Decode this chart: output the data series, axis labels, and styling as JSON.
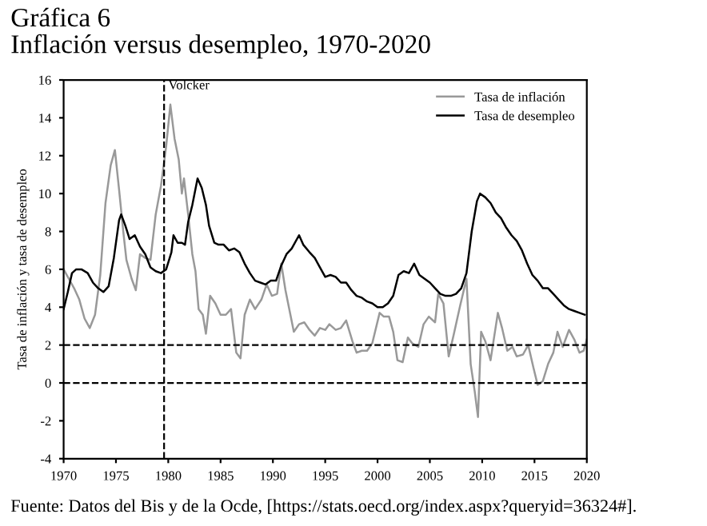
{
  "chart_data": {
    "type": "line",
    "title": "Gráfica 6",
    "subtitle": "Inflación versus desempleo, 1970-2020",
    "ylabel": "Tasa de inflación y tasa de desempleo",
    "xlim": [
      1970,
      2020
    ],
    "xticks": [
      1970,
      1975,
      1980,
      1985,
      1990,
      1995,
      2000,
      2005,
      2010,
      2015,
      2020
    ],
    "ylim": [
      -4,
      16
    ],
    "yticks": [
      -4,
      -2,
      0,
      2,
      4,
      6,
      8,
      10,
      12,
      14,
      16
    ],
    "grid": false,
    "legend": "top right",
    "line_style": "solid",
    "marker": "none",
    "series": [
      {
        "name": "Tasa de inflación",
        "color": "#999999",
        "x": [
          1970,
          1970.5,
          1971,
          1971.5,
          1972,
          1972.5,
          1973,
          1973.5,
          1974,
          1974.5,
          1974.9,
          1975.3,
          1975.7,
          1976,
          1976.5,
          1976.9,
          1977.3,
          1977.8,
          1978.3,
          1978.8,
          1979.3,
          1979.8,
          1980.2,
          1980.6,
          1981,
          1981.3,
          1981.5,
          1981.9,
          1982.3,
          1982.6,
          1982.9,
          1983.3,
          1983.6,
          1984,
          1984.5,
          1985,
          1985.5,
          1986,
          1986.5,
          1986.9,
          1987.3,
          1987.8,
          1988.3,
          1988.9,
          1989.4,
          1989.9,
          1990.4,
          1990.8,
          1991.2,
          1991.6,
          1992,
          1992.5,
          1993,
          1993.5,
          1994,
          1994.5,
          1995,
          1995.4,
          1996,
          1996.5,
          1997,
          1997.6,
          1998,
          1998.5,
          1999,
          1999.5,
          2000.2,
          2000.6,
          2001.1,
          2001.5,
          2001.9,
          2002.4,
          2002.9,
          2003.3,
          2003.9,
          2004.4,
          2004.9,
          2005.5,
          2005.8,
          2006.3,
          2006.8,
          2007.3,
          2007.9,
          2008.5,
          2008.9,
          2009.3,
          2009.6,
          2009.9,
          2010.3,
          2010.8,
          2011.5,
          2011.9,
          2012.4,
          2012.9,
          2013.3,
          2013.9,
          2014.4,
          2014.9,
          2015.3,
          2015.8,
          2016.3,
          2016.8,
          2017.2,
          2017.7,
          2018.3,
          2018.8,
          2019.3,
          2019.7,
          2020
        ],
        "values": [
          6.0,
          5.5,
          5.0,
          4.4,
          3.4,
          2.9,
          3.6,
          5.7,
          9.5,
          11.5,
          12.3,
          10.2,
          8.0,
          6.5,
          5.5,
          4.9,
          6.8,
          6.6,
          6.5,
          8.9,
          10.4,
          12.5,
          14.7,
          12.9,
          11.8,
          10.0,
          10.8,
          8.9,
          6.8,
          5.9,
          3.9,
          3.6,
          2.6,
          4.6,
          4.2,
          3.6,
          3.6,
          3.9,
          1.6,
          1.3,
          3.6,
          4.4,
          3.9,
          4.4,
          5.2,
          4.6,
          4.7,
          6.3,
          4.9,
          3.8,
          2.7,
          3.1,
          3.2,
          2.8,
          2.5,
          2.9,
          2.8,
          3.1,
          2.8,
          2.9,
          3.3,
          2.2,
          1.6,
          1.7,
          1.7,
          2.1,
          3.7,
          3.5,
          3.5,
          2.7,
          1.2,
          1.1,
          2.4,
          2.1,
          1.9,
          3.1,
          3.5,
          3.2,
          4.7,
          4.2,
          1.4,
          2.6,
          4.1,
          5.5,
          1.0,
          -0.5,
          -1.8,
          2.7,
          2.2,
          1.2,
          3.7,
          2.9,
          1.7,
          1.9,
          1.4,
          1.5,
          2.0,
          0.8,
          -0.1,
          0.1,
          1.0,
          1.6,
          2.7,
          1.9,
          2.8,
          2.3,
          1.6,
          1.7,
          2.3
        ]
      },
      {
        "name": "Tasa de desempleo",
        "color": "#000000",
        "x": [
          1970,
          1970.4,
          1970.8,
          1971.2,
          1971.7,
          1972.3,
          1972.8,
          1973.3,
          1973.8,
          1974.3,
          1974.8,
          1975.3,
          1975.5,
          1975.9,
          1976.3,
          1976.8,
          1977.3,
          1977.8,
          1978.3,
          1978.8,
          1979.3,
          1979.8,
          1980.3,
          1980.5,
          1980.9,
          1981.3,
          1981.6,
          1981.9,
          1982.3,
          1982.8,
          1983.2,
          1983.6,
          1983.9,
          1984.4,
          1984.8,
          1985.3,
          1985.8,
          1986.3,
          1986.8,
          1987.3,
          1987.8,
          1988.3,
          1988.8,
          1989.3,
          1989.8,
          1990.3,
          1990.8,
          1991.3,
          1991.8,
          1992.5,
          1992.9,
          1993.5,
          1994,
          1994.5,
          1995,
          1995.5,
          1996,
          1996.5,
          1997,
          1997.5,
          1998,
          1998.5,
          1999,
          1999.5,
          2000,
          2000.5,
          2001,
          2001.5,
          2002,
          2002.5,
          2003,
          2003.5,
          2004,
          2004.5,
          2005,
          2005.5,
          2006,
          2006.5,
          2007,
          2007.5,
          2008,
          2008.5,
          2009,
          2009.5,
          2009.8,
          2010.3,
          2010.8,
          2011.3,
          2011.8,
          2012.3,
          2012.8,
          2013.3,
          2013.8,
          2014.3,
          2014.8,
          2015.3,
          2015.8,
          2016.3,
          2016.8,
          2017.3,
          2017.8,
          2018.3,
          2018.8,
          2019.3,
          2019.8
        ],
        "values": [
          3.9,
          4.8,
          5.8,
          6.0,
          6.0,
          5.8,
          5.3,
          5.0,
          4.8,
          5.1,
          6.6,
          8.6,
          8.9,
          8.3,
          7.6,
          7.8,
          7.2,
          6.8,
          6.1,
          5.9,
          5.8,
          6.0,
          6.9,
          7.8,
          7.4,
          7.4,
          7.3,
          8.5,
          9.4,
          10.8,
          10.3,
          9.4,
          8.3,
          7.4,
          7.3,
          7.3,
          7.0,
          7.1,
          6.9,
          6.3,
          5.8,
          5.4,
          5.3,
          5.2,
          5.4,
          5.4,
          6.2,
          6.8,
          7.1,
          7.8,
          7.3,
          6.9,
          6.6,
          6.1,
          5.6,
          5.7,
          5.6,
          5.3,
          5.3,
          4.9,
          4.6,
          4.5,
          4.3,
          4.2,
          4.0,
          4.0,
          4.2,
          4.6,
          5.7,
          5.9,
          5.8,
          6.3,
          5.7,
          5.5,
          5.3,
          5.0,
          4.7,
          4.6,
          4.6,
          4.7,
          5.0,
          5.8,
          8.0,
          9.6,
          10.0,
          9.8,
          9.5,
          9.0,
          8.7,
          8.2,
          7.8,
          7.5,
          7.0,
          6.3,
          5.7,
          5.4,
          5.0,
          5.0,
          4.7,
          4.4,
          4.1,
          3.9,
          3.8,
          3.7,
          3.6
        ]
      }
    ],
    "ref_lines": [
      {
        "axis": "y",
        "value": 2,
        "line_style": "dashed",
        "color": "#000000"
      },
      {
        "axis": "y",
        "value": 0,
        "line_style": "dashed",
        "color": "#000000"
      },
      {
        "axis": "x",
        "value": 1979.6,
        "label": "Volcker",
        "line_style": "dashed",
        "color": "#000000"
      }
    ],
    "annotations": [
      "Fuente: Datos del Bis y de la Ocde, [https://stats.oecd.org/index.aspx?queryid=36324#]."
    ]
  }
}
